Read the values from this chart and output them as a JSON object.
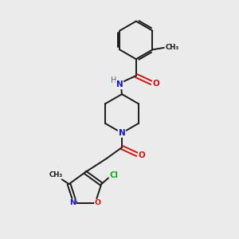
{
  "bg_color": "#ebebeb",
  "bond_color": "#1a1a1a",
  "atom_colors": {
    "N": "#1414cc",
    "O": "#cc1414",
    "Cl": "#14aa14",
    "H": "#507070",
    "C": "#1a1a1a"
  },
  "figsize": [
    3.0,
    3.0
  ],
  "dpi": 100
}
